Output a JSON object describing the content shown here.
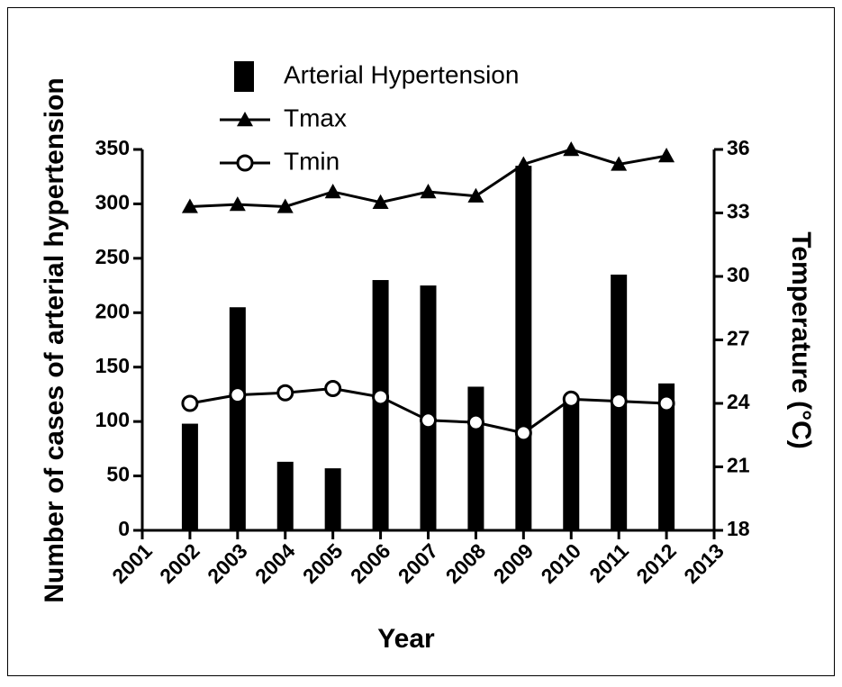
{
  "chart_data": {
    "type": "bar_line",
    "x_label": "Year",
    "y_label": "Number of cases of arterial hypertension",
    "y2_label": "Temperature (°C)",
    "x": [
      2002,
      2003,
      2004,
      2005,
      2006,
      2007,
      2008,
      2009,
      2010,
      2011,
      2012
    ],
    "xlim": [
      2001,
      2013
    ],
    "xticks": [
      2001,
      2002,
      2003,
      2004,
      2005,
      2006,
      2007,
      2008,
      2009,
      2010,
      2011,
      2012,
      2013
    ],
    "ylim": [
      0,
      350
    ],
    "yticks": [
      0,
      50,
      100,
      150,
      200,
      250,
      300,
      350
    ],
    "y2lim": [
      18,
      36
    ],
    "y2ticks": [
      18,
      21,
      24,
      27,
      30,
      33,
      36
    ],
    "legend": "top-left",
    "series": [
      {
        "name": "Arterial Hypertension",
        "type": "bar",
        "color": "#000000",
        "values": [
          98,
          205,
          63,
          57,
          230,
          225,
          132,
          335,
          120,
          235,
          135
        ]
      },
      {
        "name": "Tmax",
        "type": "line",
        "axis": "y2",
        "marker": "triangle",
        "color": "#000000",
        "values": [
          33.3,
          33.4,
          33.3,
          34.0,
          33.5,
          34.0,
          33.8,
          35.3,
          36.0,
          35.3,
          35.7
        ]
      },
      {
        "name": "Tmin",
        "type": "line",
        "axis": "y2",
        "marker": "circle",
        "color": "#000000",
        "values": [
          24.0,
          24.4,
          24.5,
          24.7,
          24.3,
          23.2,
          23.1,
          22.6,
          24.2,
          24.1,
          24.0
        ]
      }
    ]
  }
}
